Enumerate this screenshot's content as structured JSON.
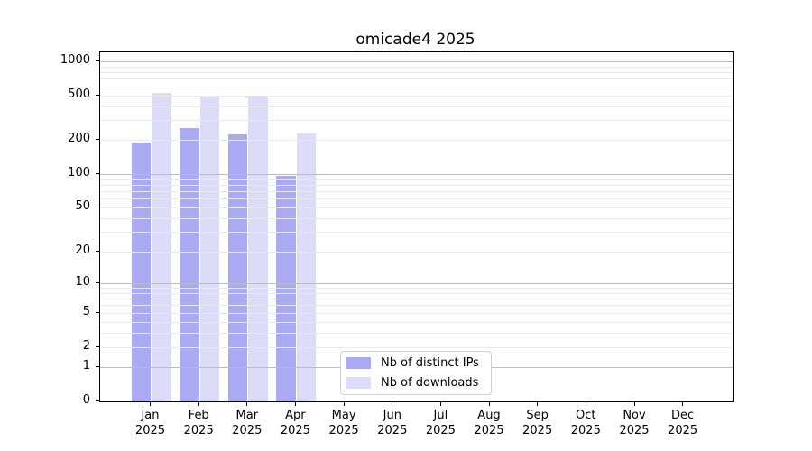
{
  "title": "omicade4 2025",
  "legend": {
    "items": [
      {
        "label": "Nb of distinct IPs",
        "color": "#a9a9f4"
      },
      {
        "label": "Nb of downloads",
        "color": "#dcdcf9"
      }
    ]
  },
  "chart_data": {
    "type": "bar",
    "title": "omicade4 2025",
    "categories": [
      "Jan 2025",
      "Feb 2025",
      "Mar 2025",
      "Apr 2025",
      "May 2025",
      "Jun 2025",
      "Jul 2025",
      "Aug 2025",
      "Sep 2025",
      "Oct 2025",
      "Nov 2025",
      "Dec 2025"
    ],
    "series": [
      {
        "name": "Nb of distinct IPs",
        "color": "#a9a9f4",
        "values": [
          190,
          255,
          227,
          96,
          0,
          0,
          0,
          0,
          0,
          0,
          0,
          0
        ]
      },
      {
        "name": "Nb of downloads",
        "color": "#dcdcf9",
        "values": [
          530,
          500,
          480,
          230,
          0,
          0,
          0,
          0,
          0,
          0,
          0,
          0
        ]
      }
    ],
    "xlabel": "",
    "ylabel": "",
    "yscale": "log1p",
    "ylim": [
      0,
      1230
    ],
    "yticks": [
      0,
      1,
      2,
      5,
      10,
      20,
      50,
      100,
      200,
      500,
      1000
    ],
    "grid": "on",
    "grid_minor_values": [
      2,
      3,
      4,
      5,
      6,
      7,
      8,
      9,
      20,
      30,
      40,
      50,
      60,
      70,
      80,
      90,
      200,
      300,
      400,
      500,
      600,
      700,
      800,
      900
    ],
    "grid_major_values": [
      1,
      10,
      100,
      1000
    ],
    "legend_position": "lower center",
    "colors": {
      "background": "#ffffff",
      "axis": "#000000",
      "grid_minor": "#e9e9e9",
      "grid_major": "#bdbdbd"
    }
  }
}
